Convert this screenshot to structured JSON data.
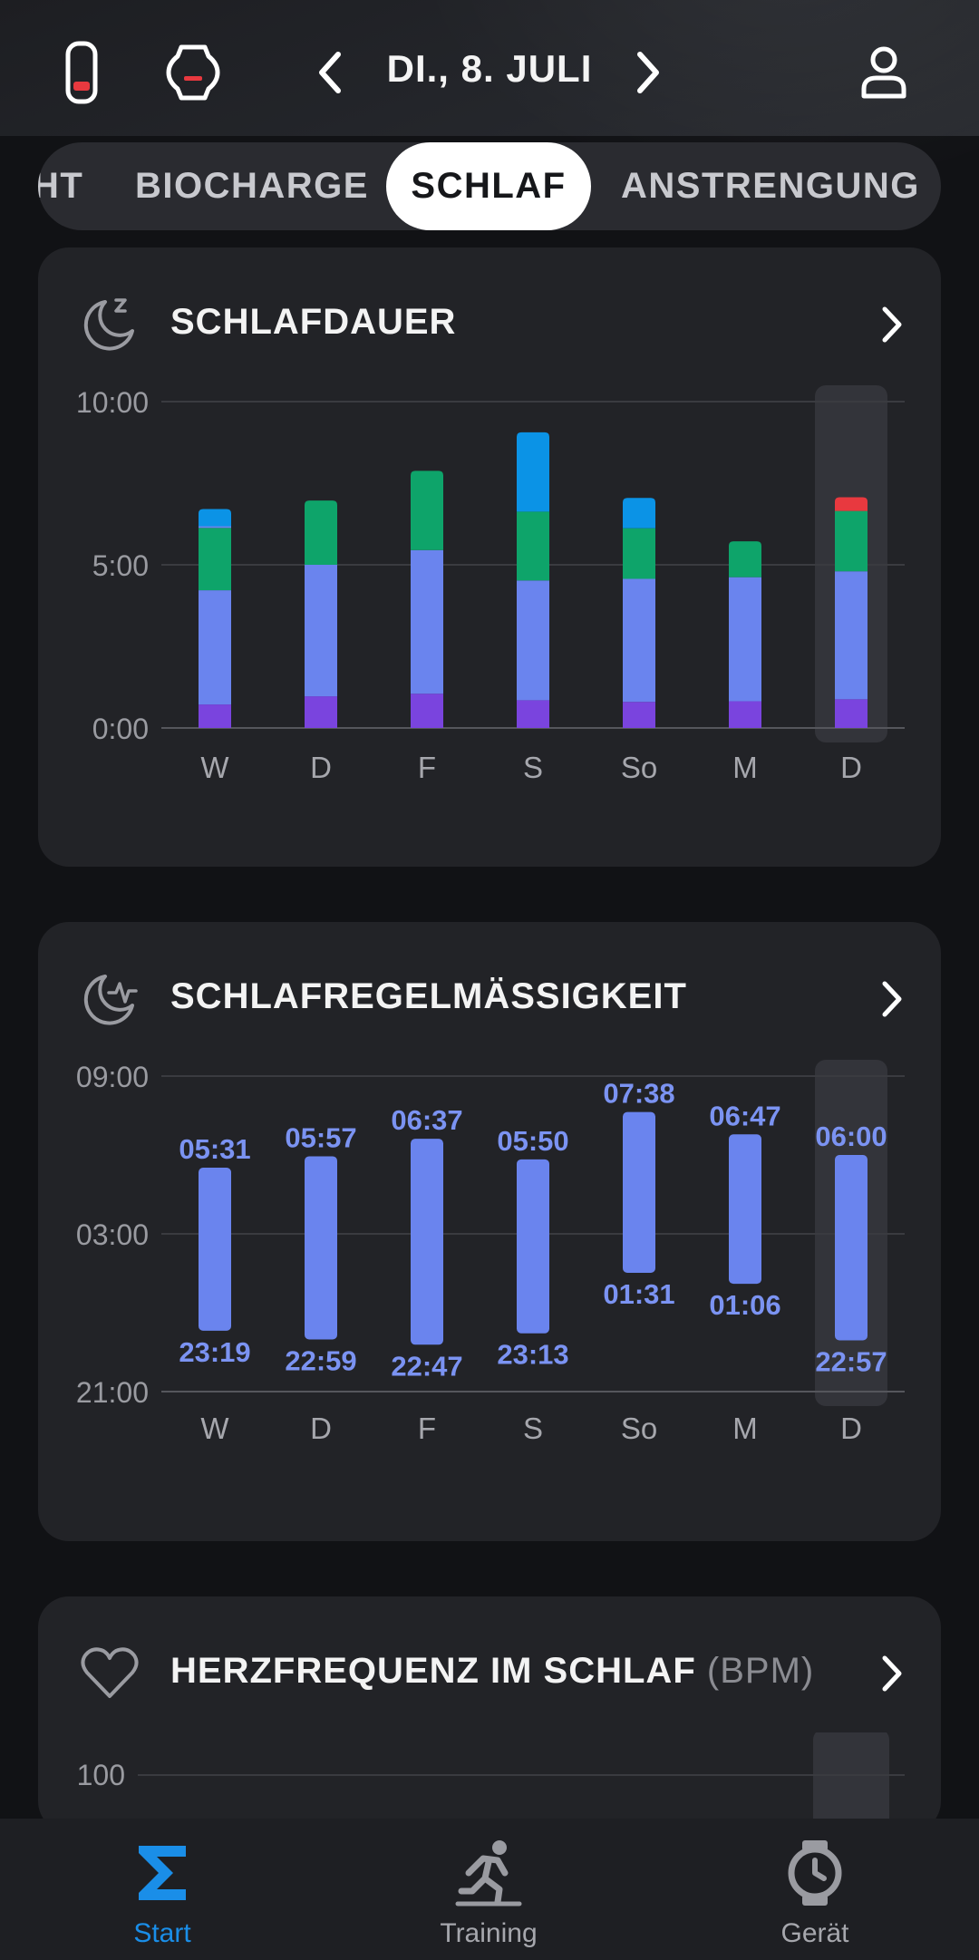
{
  "header": {
    "date": "DI., 8. JULI"
  },
  "tabs": [
    {
      "label": "HT",
      "active": false
    },
    {
      "label": "BIOCHARGE",
      "active": false
    },
    {
      "label": "SCHLAF",
      "active": true
    },
    {
      "label": "ANSTRENGUNG",
      "active": false
    }
  ],
  "cards": {
    "sleep_duration": {
      "title": "SCHLAFDAUER"
    },
    "sleep_regularity": {
      "title": "SCHLAFREGELMÄSSIGKEIT"
    },
    "sleep_heart_rate": {
      "title": "HERZFREQUENZ IM SCHLAF",
      "unit": "(BPM)"
    }
  },
  "colors": {
    "deep": "#7a44de",
    "light": "#6a84ee",
    "rem": "#0ea46a",
    "awake": "#0b93e6",
    "red": "#e8393f",
    "accent": "#1a8ee8",
    "regularity_label": "#7b93f2"
  },
  "chart_data": [
    {
      "type": "bar",
      "title": "SCHLAFDAUER",
      "categories": [
        "W",
        "D",
        "F",
        "S",
        "So",
        "M",
        "D"
      ],
      "y_ticks": [
        "10:00",
        "5:00",
        "0:00"
      ],
      "ylim": [
        0,
        10
      ],
      "stacked": true,
      "highlight_index": 6,
      "series": [
        {
          "values": [
            0.72,
            0.97,
            1.05,
            0.85,
            0.8,
            0.82,
            0.88
          ]
        },
        {
          "values": [
            3.5,
            4.03,
            4.4,
            3.67,
            3.77,
            3.8,
            3.92
          ]
        },
        {
          "values": [
            1.91,
            1.97,
            2.43,
            2.11,
            1.55,
            1.1,
            1.85
          ]
        },
        {
          "values": [
            0.05,
            0.0,
            0.0,
            0.0,
            0.0,
            0.0,
            0.0
          ]
        },
        {
          "values": [
            0.53,
            0.0,
            0.0,
            2.43,
            0.93,
            0.0,
            0.0
          ]
        },
        {
          "values": [
            0.0,
            0.0,
            0.0,
            0.0,
            0.0,
            0.0,
            0.42
          ]
        }
      ]
    },
    {
      "type": "bar",
      "title": "SCHLAFREGELMÄSSIGKEIT",
      "categories": [
        "W",
        "D",
        "F",
        "S",
        "So",
        "M",
        "D"
      ],
      "y_ticks": [
        "09:00",
        "03:00",
        "21:00"
      ],
      "floating": true,
      "highlight_index": 6,
      "bars": [
        {
          "start": "23:19",
          "end": "05:31"
        },
        {
          "start": "22:59",
          "end": "05:57"
        },
        {
          "start": "22:47",
          "end": "06:37"
        },
        {
          "start": "23:13",
          "end": "05:50"
        },
        {
          "start": "01:31",
          "end": "07:38"
        },
        {
          "start": "01:06",
          "end": "06:47"
        },
        {
          "start": "22:57",
          "end": "06:00"
        }
      ]
    },
    {
      "type": "bar",
      "title": "HERZFREQUENZ IM SCHLAF",
      "y_ticks": [
        "100"
      ]
    }
  ],
  "nav": [
    {
      "label": "Start",
      "icon": "sigma-icon",
      "active": true
    },
    {
      "label": "Training",
      "icon": "running-icon",
      "active": false
    },
    {
      "label": "Gerät",
      "icon": "watch-icon",
      "active": false
    }
  ]
}
